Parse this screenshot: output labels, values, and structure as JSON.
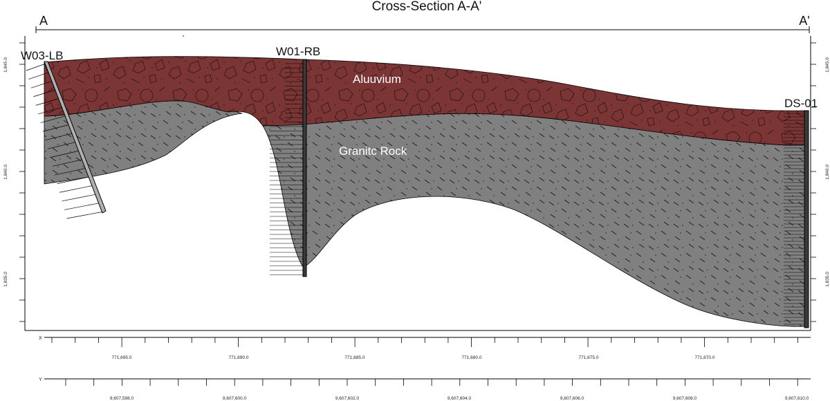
{
  "title": "Cross-Section A-A'",
  "section_start": "A",
  "section_end": "A'",
  "units": [
    {
      "name": "Aluuvium",
      "color": "#7b3535"
    },
    {
      "name": "Granitc Rock",
      "color": "#808080"
    }
  ],
  "wells": [
    {
      "name": "W03-LB"
    },
    {
      "name": "W01-RB"
    },
    {
      "name": "DS-01"
    }
  ],
  "elevation_axis": {
    "ticks": [
      "1,845.0",
      "1,840.0",
      "1,835.0"
    ]
  },
  "x_axis": {
    "letter": "X",
    "ticks": [
      "771,695.0",
      "771,690.0",
      "771,685.0",
      "771,680.0",
      "771,675.0",
      "771,670.0"
    ]
  },
  "y_axis": {
    "letter": "Y",
    "ticks": [
      "9,607,598.0",
      "9,607,600.0",
      "9,607,602.0",
      "9,607,604.0",
      "9,607,606.0",
      "9,607,608.0",
      "9,607,610.0"
    ]
  },
  "colors": {
    "alluvium": "#7b3535",
    "granite": "#808080",
    "frame": "#000000"
  }
}
